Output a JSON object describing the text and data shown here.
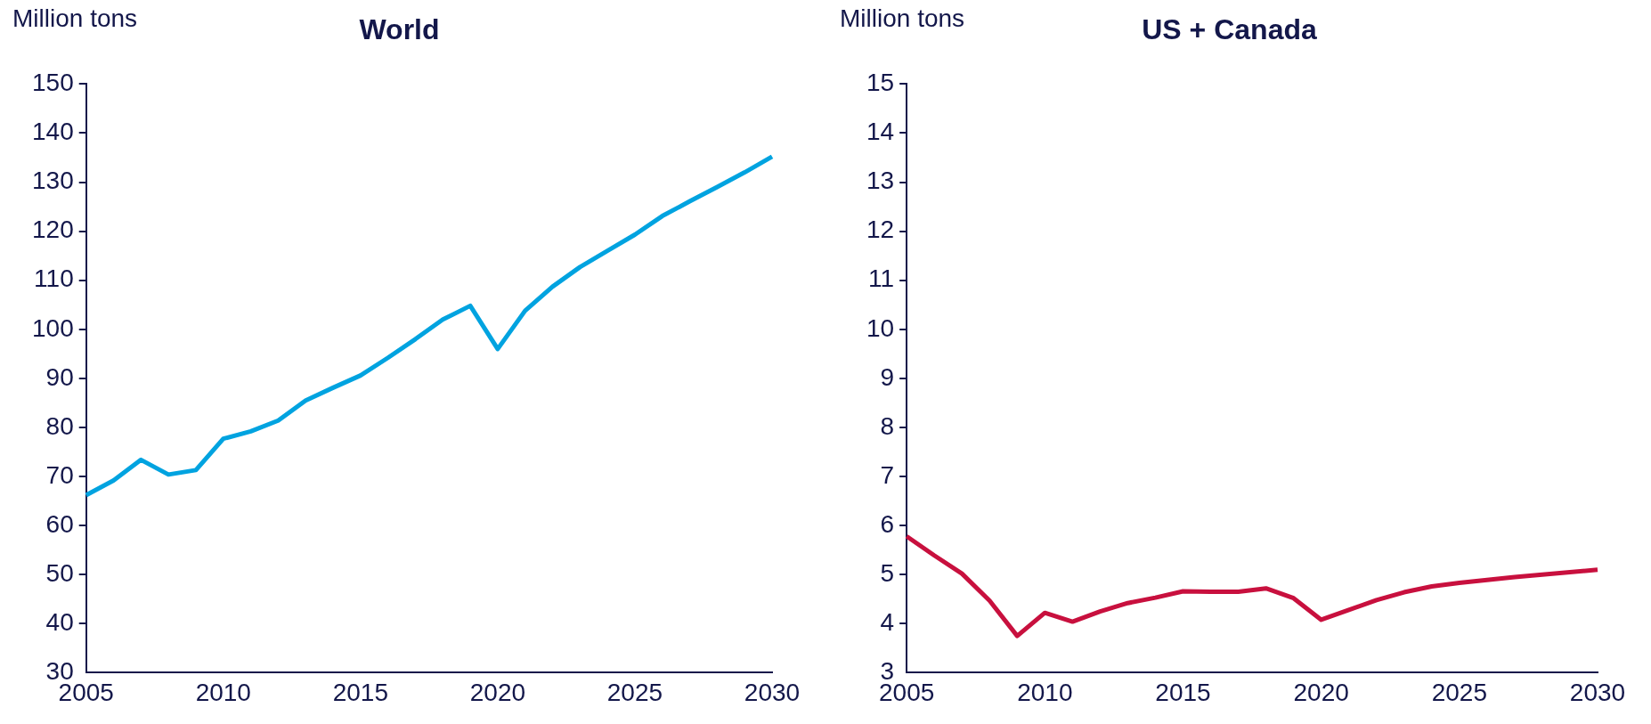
{
  "chart_data": [
    {
      "type": "line",
      "title": "World",
      "ylabel": "Million tons",
      "x": [
        2005,
        2006,
        2007,
        2008,
        2009,
        2010,
        2011,
        2012,
        2013,
        2014,
        2015,
        2016,
        2017,
        2018,
        2019,
        2020,
        2021,
        2022,
        2023,
        2024,
        2025,
        2026,
        2027,
        2028,
        2029,
        2030
      ],
      "series": [
        {
          "color": "#00a3e0",
          "values": [
            66.2,
            69.2,
            73.4,
            70.4,
            71.3,
            77.7,
            79.2,
            81.4,
            85.5,
            88.1,
            90.6,
            94.2,
            98.0,
            102.0,
            104.8,
            96.0,
            103.8,
            108.7,
            112.7,
            116.0,
            119.3,
            123.1,
            126.1,
            129.0,
            132.0,
            135.2
          ]
        }
      ],
      "xlim": [
        2005,
        2030
      ],
      "xticks": [
        2005,
        2010,
        2015,
        2020,
        2025,
        2030
      ],
      "ylim": [
        30,
        150
      ],
      "yticks": [
        30,
        40,
        50,
        60,
        70,
        80,
        90,
        100,
        110,
        120,
        130,
        140,
        150
      ],
      "grid": false,
      "legend": false
    },
    {
      "type": "line",
      "title": "US + Canada",
      "ylabel": "Million tons",
      "x": [
        2005,
        2006,
        2007,
        2008,
        2009,
        2010,
        2011,
        2012,
        2013,
        2014,
        2015,
        2016,
        2017,
        2018,
        2019,
        2020,
        2021,
        2022,
        2023,
        2024,
        2025,
        2026,
        2027,
        2028,
        2029,
        2030
      ],
      "series": [
        {
          "color": "#c8103e",
          "values": [
            5.78,
            5.39,
            5.02,
            4.47,
            3.75,
            4.22,
            4.04,
            4.25,
            4.42,
            4.53,
            4.66,
            4.65,
            4.65,
            4.72,
            4.52,
            4.08,
            4.28,
            4.48,
            4.64,
            4.76,
            4.83,
            4.89,
            4.95,
            5.0,
            5.05,
            5.1
          ]
        }
      ],
      "xlim": [
        2005,
        2030
      ],
      "xticks": [
        2005,
        2010,
        2015,
        2020,
        2025,
        2030
      ],
      "ylim": [
        3,
        15
      ],
      "yticks": [
        3,
        4,
        5,
        6,
        7,
        8,
        9,
        10,
        11,
        12,
        13,
        14,
        15
      ],
      "grid": false,
      "legend": false
    }
  ]
}
